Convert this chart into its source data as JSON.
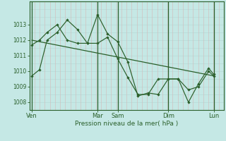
{
  "bg_color": "#c5e8e5",
  "grid_h_color": "#b8dbd8",
  "grid_v_color": "#d4b8b8",
  "line_color": "#2a5f2a",
  "xlabel": "Pression niveau de la mer( hPa )",
  "yticks": [
    1008,
    1009,
    1010,
    1011,
    1012,
    1013
  ],
  "xtick_labels": [
    "Ven",
    "Mar",
    "Sam",
    "Dim",
    "Lun"
  ],
  "xtick_positions": [
    0,
    13,
    17,
    27,
    36
  ],
  "ylim": [
    1007.5,
    1014.5
  ],
  "xlim": [
    -0.5,
    38
  ],
  "series1_x": [
    0,
    1.5,
    3,
    5,
    7,
    9,
    11,
    13,
    15,
    17,
    19,
    21,
    23,
    25,
    27,
    29,
    31,
    33,
    35,
    36
  ],
  "series1_y": [
    1009.7,
    1010.1,
    1012.0,
    1012.5,
    1013.3,
    1012.7,
    1011.8,
    1013.65,
    1012.4,
    1011.9,
    1010.6,
    1008.4,
    1008.6,
    1008.5,
    1009.5,
    1009.5,
    1008.0,
    1009.2,
    1010.2,
    1009.8
  ],
  "series2_x": [
    0,
    1.5,
    3,
    5,
    7,
    9,
    11,
    13,
    15,
    17,
    19,
    21,
    23,
    25,
    27,
    29,
    31,
    33,
    35,
    36
  ],
  "series2_y": [
    1011.7,
    1012.0,
    1012.5,
    1013.0,
    1012.0,
    1011.8,
    1011.8,
    1011.8,
    1012.2,
    1010.8,
    1009.6,
    1008.5,
    1008.5,
    1009.5,
    1009.5,
    1009.5,
    1008.8,
    1009.0,
    1010.0,
    1009.7
  ],
  "trend_x": [
    0,
    36
  ],
  "trend_y": [
    1012.0,
    1009.7
  ],
  "vline_major": [
    0,
    13,
    17,
    27,
    36
  ],
  "n_v_minor": 38,
  "figsize": [
    3.2,
    2.0
  ],
  "dpi": 100
}
